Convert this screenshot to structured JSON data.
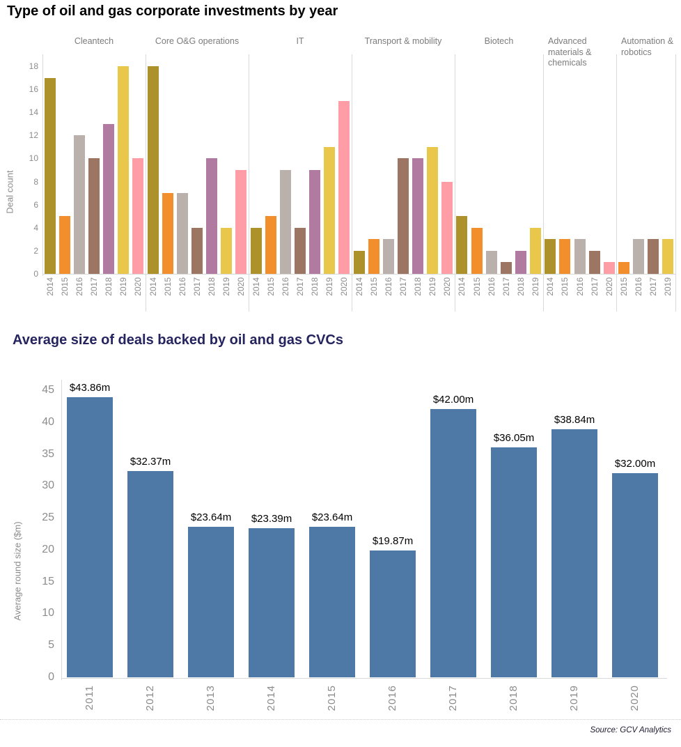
{
  "page": {
    "source": "Source: GCV Analytics"
  },
  "colors": {
    "year_palette": {
      "2014": "#ad922b",
      "2015": "#f28e2b",
      "2016": "#bab0ac",
      "2017": "#9c7662",
      "2018": "#b07aa1",
      "2019": "#e9c74b",
      "2020": "#ff9da7"
    },
    "avg_bar": "#4e79a7",
    "axis_line": "#d9d9d9",
    "tick_text": "#8c8c8c",
    "title_top": "#000000",
    "title_bottom": "#25245f"
  },
  "chart_data": [
    {
      "type": "bar",
      "title": "Type of oil and gas corporate investments by year",
      "ylabel": "Deal count",
      "ylim": [
        0,
        18
      ],
      "yticks": [
        18,
        16,
        14,
        12,
        10,
        8,
        6,
        4,
        2,
        0
      ],
      "grid": false,
      "legend": "none (color encodes year)",
      "groups": [
        {
          "label": "Cleantech",
          "years": [
            "2014",
            "2015",
            "2016",
            "2017",
            "2018",
            "2019",
            "2020"
          ],
          "values": [
            17,
            5,
            12,
            10,
            13,
            18,
            10
          ]
        },
        {
          "label": "Core O&G operations",
          "years": [
            "2014",
            "2015",
            "2016",
            "2017",
            "2018",
            "2019",
            "2020"
          ],
          "values": [
            18,
            7,
            7,
            4,
            10,
            4,
            9
          ]
        },
        {
          "label": "IT",
          "years": [
            "2014",
            "2015",
            "2016",
            "2017",
            "2018",
            "2019",
            "2020"
          ],
          "values": [
            4,
            5,
            9,
            4,
            9,
            11,
            15
          ]
        },
        {
          "label": "Transport & mobility",
          "years": [
            "2014",
            "2015",
            "2016",
            "2017",
            "2018",
            "2019",
            "2020"
          ],
          "values": [
            2,
            3,
            3,
            10,
            10,
            11,
            8
          ]
        },
        {
          "label": "Biotech",
          "years": [
            "2014",
            "2015",
            "2016",
            "2017",
            "2018",
            "2019"
          ],
          "values": [
            5,
            4,
            2,
            1,
            2,
            4
          ]
        },
        {
          "label": "Advanced materials & chemicals",
          "years": [
            "2014",
            "2015",
            "2016",
            "2017",
            "2020"
          ],
          "values": [
            3,
            3,
            3,
            2,
            1
          ]
        },
        {
          "label": "Automation & robotics",
          "years": [
            "2015",
            "2016",
            "2017",
            "2019"
          ],
          "values": [
            1,
            3,
            3,
            3
          ]
        }
      ]
    },
    {
      "type": "bar",
      "title": "Average size of deals backed by oil and gas CVCs",
      "ylabel": "Average round size ($m)",
      "ylim": [
        0,
        45
      ],
      "yticks": [
        45,
        40,
        35,
        30,
        25,
        20,
        15,
        10,
        5,
        0
      ],
      "grid": false,
      "categories": [
        "2011",
        "2012",
        "2013",
        "2014",
        "2015",
        "2016",
        "2017",
        "2018",
        "2019",
        "2020"
      ],
      "values": [
        43.86,
        32.37,
        23.64,
        23.39,
        23.64,
        19.87,
        42.0,
        36.05,
        38.84,
        32.0
      ],
      "value_labels": [
        "$43.86m",
        "$32.37m",
        "$23.64m",
        "$23.39m",
        "$23.64m",
        "$19.87m",
        "$42.00m",
        "$36.05m",
        "$38.84m",
        "$32.00m"
      ]
    }
  ]
}
